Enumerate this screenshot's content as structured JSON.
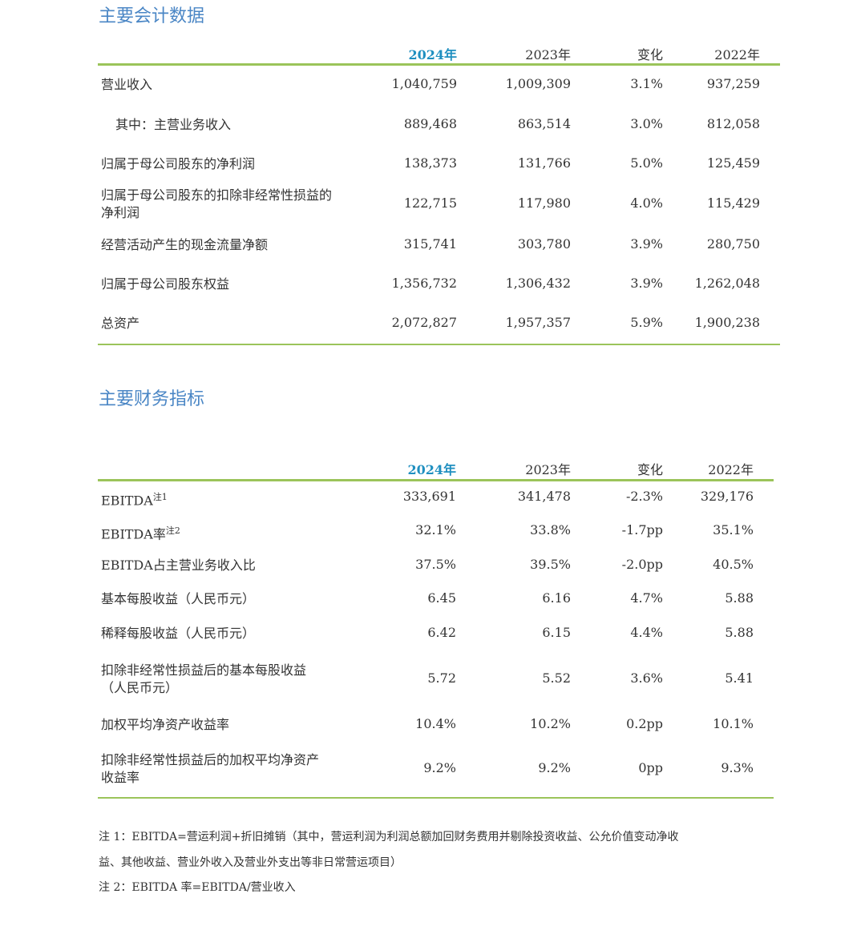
{
  "section1": {
    "title": "主要会计数据",
    "headers": [
      "2024年",
      "2023年",
      "变化",
      "2022年"
    ],
    "rows": [
      {
        "label": "营业收入",
        "values": [
          "1,040,759",
          "1,009,309",
          "3.1%",
          "937,259"
        ]
      },
      {
        "label": "其中：主营业务收入",
        "values": [
          "889,468",
          "863,514",
          "3.0%",
          "812,058"
        ],
        "indent": true
      },
      {
        "label": "归属于母公司股东的净利润",
        "values": [
          "138,373",
          "131,766",
          "5.0%",
          "125,459"
        ]
      },
      {
        "label": "归属于母公司股东的扣除非经常性损益的\n净利润",
        "values": [
          "122,715",
          "117,980",
          "4.0%",
          "115,429"
        ]
      },
      {
        "label": "经营活动产生的现金流量净额",
        "values": [
          "315,741",
          "303,780",
          "3.9%",
          "280,750"
        ]
      },
      {
        "label": "归属于母公司股东权益",
        "values": [
          "1,356,732",
          "1,306,432",
          "3.9%",
          "1,262,048"
        ]
      },
      {
        "label": "总资产",
        "values": [
          "2,072,827",
          "1,957,357",
          "5.9%",
          "1,900,238"
        ]
      }
    ]
  },
  "section2": {
    "title": "主要财务指标",
    "headers": [
      "2024年",
      "2023年",
      "变化",
      "2022年"
    ],
    "rows": [
      {
        "label": "EBITDA",
        "sup": "注1",
        "values": [
          "333,691",
          "341,478",
          "-2.3%",
          "329,176"
        ]
      },
      {
        "label": "EBITDA率",
        "sup": "注2",
        "values": [
          "32.1%",
          "33.8%",
          "-1.7pp",
          "35.1%"
        ]
      },
      {
        "label": "EBITDA占主营业务收入比",
        "values": [
          "37.5%",
          "39.5%",
          "-2.0pp",
          "40.5%"
        ]
      },
      {
        "label": "基本每股收益（人民币元）",
        "values": [
          "6.45",
          "6.16",
          "4.7%",
          "5.88"
        ]
      },
      {
        "label": "稀释每股收益（人民币元）",
        "values": [
          "6.42",
          "6.15",
          "4.4%",
          "5.88"
        ]
      },
      {
        "label": "扣除非经常性损益后的基本每股收益\n（人民币元）",
        "values": [
          "5.72",
          "5.52",
          "3.6%",
          "5.41"
        ]
      },
      {
        "label": "加权平均净资产收益率",
        "values": [
          "10.4%",
          "10.2%",
          "0.2pp",
          "10.1%"
        ]
      },
      {
        "label": "扣除非经常性损益后的加权平均净资产\n收益率",
        "values": [
          "9.2%",
          "9.2%",
          "0pp",
          "9.3%"
        ]
      }
    ]
  },
  "notes": [
    "注 1：EBITDA=营运利润+折旧摊销（其中，营运利润为利润总额加回财务费用并剔除投资收益、公允价值变动净收",
    "益、其他收益、营业外收入及营业外支出等非日常营运项目）",
    "注 2：EBITDA 率=EBITDA/营业收入"
  ]
}
